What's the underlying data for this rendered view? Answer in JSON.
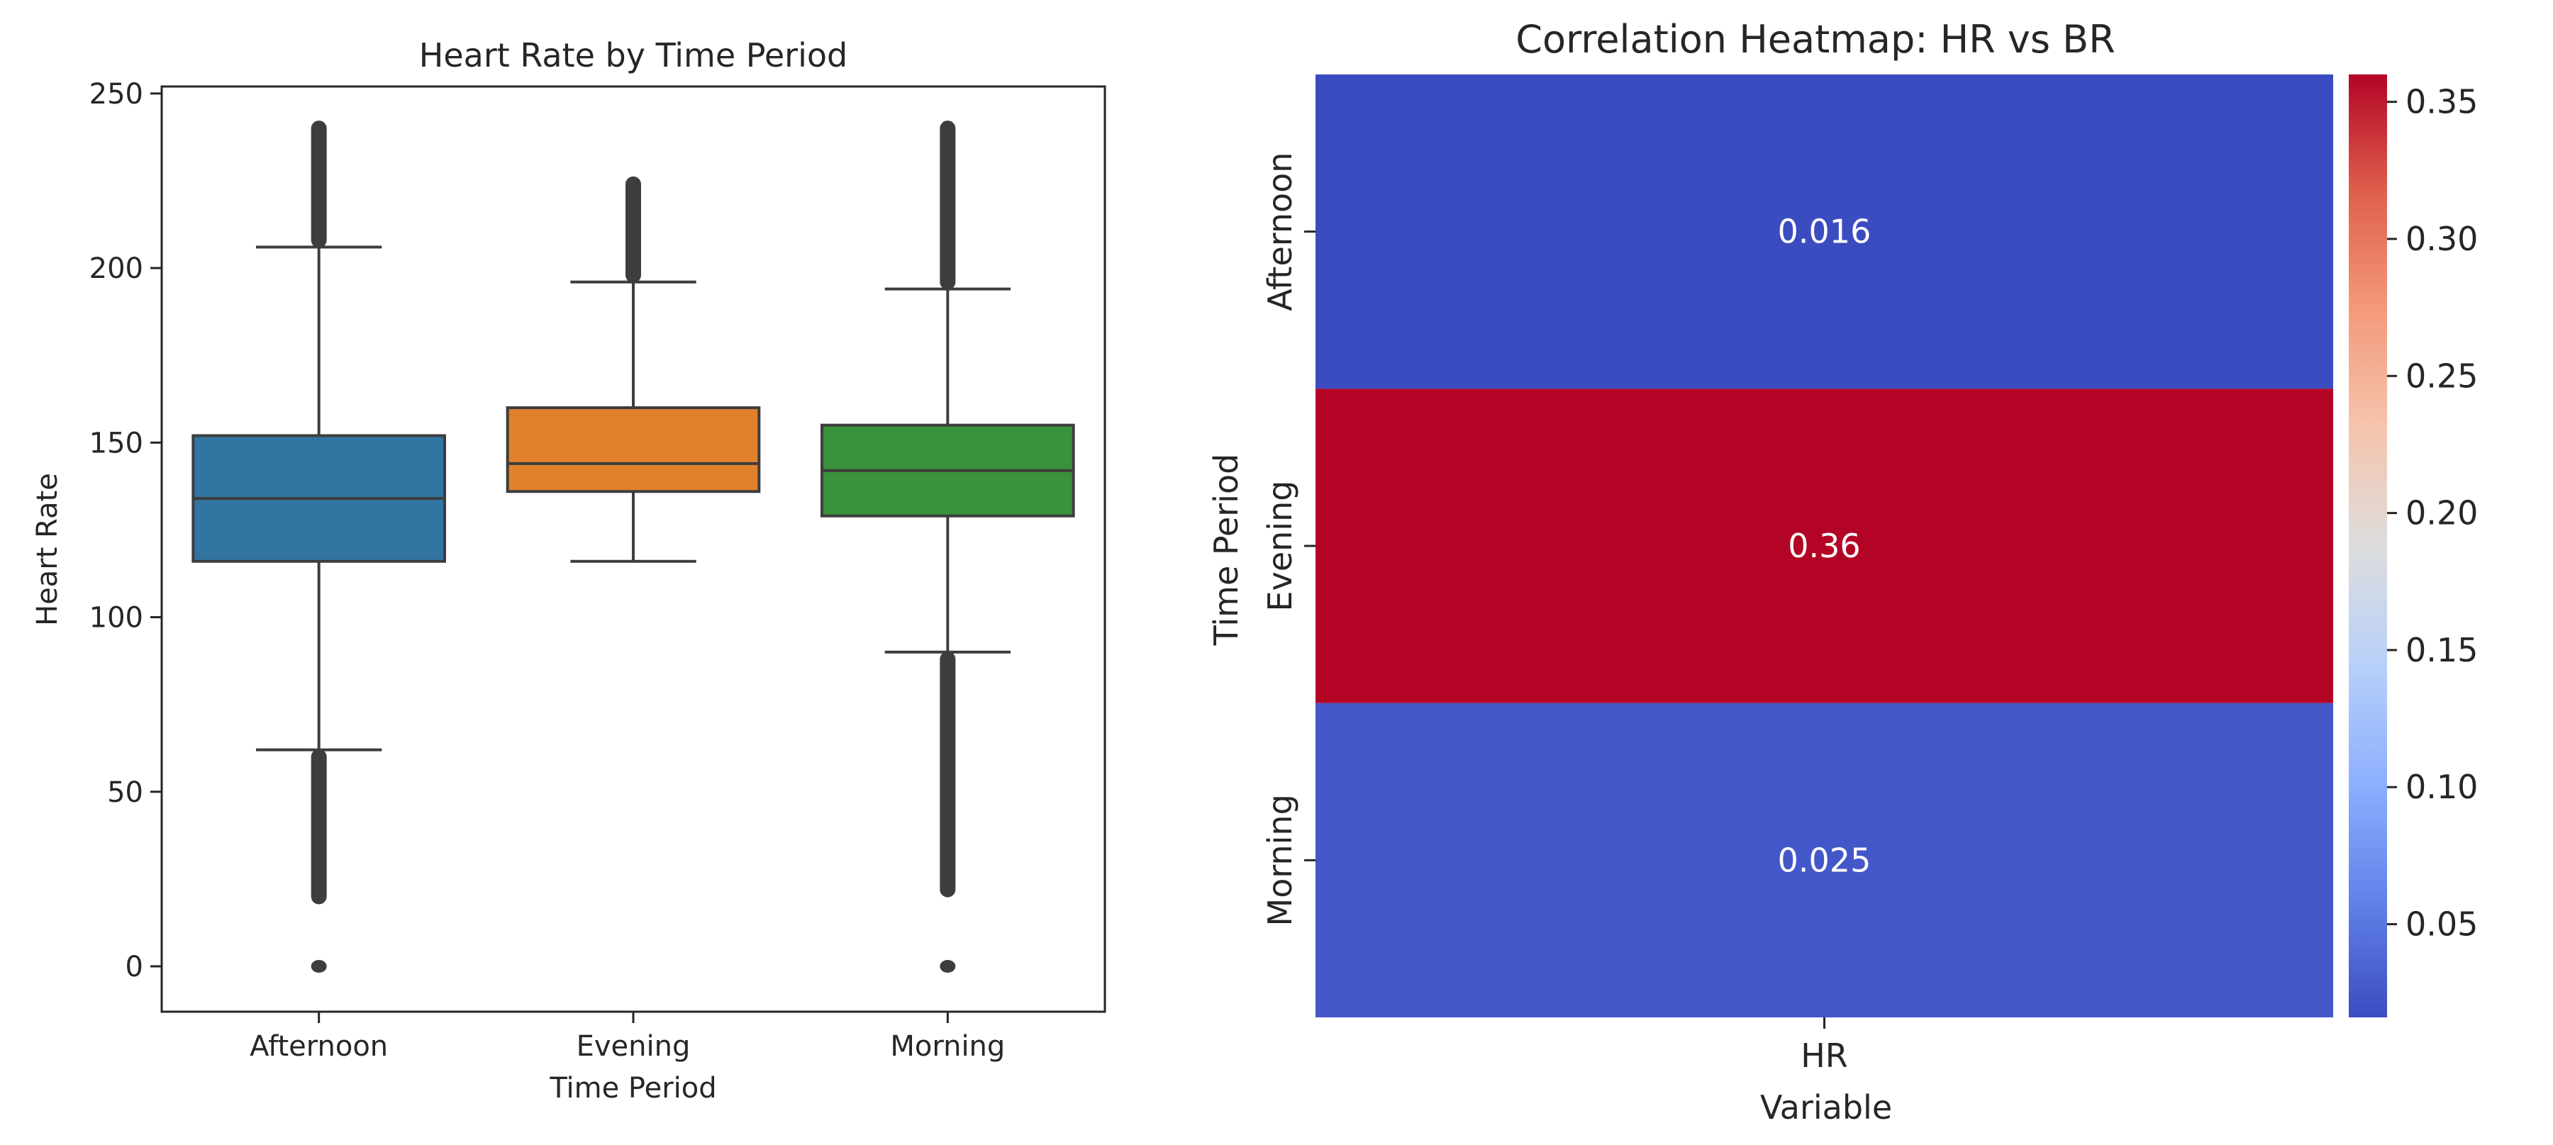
{
  "chart_data": [
    {
      "type": "box",
      "title": "Heart Rate by Time Period",
      "xlabel": "Time Period",
      "ylabel": "Heart Rate",
      "ylim": [
        -13,
        252
      ],
      "yticks": [
        0,
        50,
        100,
        150,
        200,
        250
      ],
      "categories": [
        "Afternoon",
        "Evening",
        "Morning"
      ],
      "colors": [
        "#3274a1",
        "#e1812c",
        "#3a923a"
      ],
      "boxes": [
        {
          "name": "Afternoon",
          "whisker_low": 62,
          "q1": 116,
          "median": 134,
          "q3": 152,
          "whisker_high": 206,
          "outliers_low_range": [
            20,
            62
          ],
          "outliers_high_range": [
            206,
            240
          ],
          "outliers_extra": [
            0
          ]
        },
        {
          "name": "Evening",
          "whisker_low": 116,
          "q1": 136,
          "median": 144,
          "q3": 160,
          "whisker_high": 196,
          "outliers_low_range": null,
          "outliers_high_range": [
            196,
            224
          ],
          "outliers_extra": []
        },
        {
          "name": "Morning",
          "whisker_low": 90,
          "q1": 129,
          "median": 142,
          "q3": 155,
          "whisker_high": 194,
          "outliers_low_range": [
            22,
            90
          ],
          "outliers_high_range": [
            194,
            240
          ],
          "outliers_extra": [
            0
          ]
        }
      ]
    },
    {
      "type": "heatmap",
      "title": "Correlation Heatmap: HR vs BR",
      "xlabel": "Variable",
      "ylabel": "Time Period",
      "columns": [
        "HR"
      ],
      "rows": [
        "Afternoon",
        "Evening",
        "Morning"
      ],
      "values": [
        [
          0.016
        ],
        [
          0.36
        ],
        [
          0.025
        ]
      ],
      "annotations": [
        "0.016",
        "0.36",
        "0.025"
      ],
      "colormap": "coolwarm",
      "vmin": 0.016,
      "vmax": 0.36,
      "colorbar_ticks": [
        0.05,
        0.1,
        0.15,
        0.2,
        0.25,
        0.3,
        0.35
      ],
      "colorbar_tick_labels": [
        "0.05",
        "0.10",
        "0.15",
        "0.20",
        "0.25",
        "0.30",
        "0.35"
      ]
    }
  ]
}
